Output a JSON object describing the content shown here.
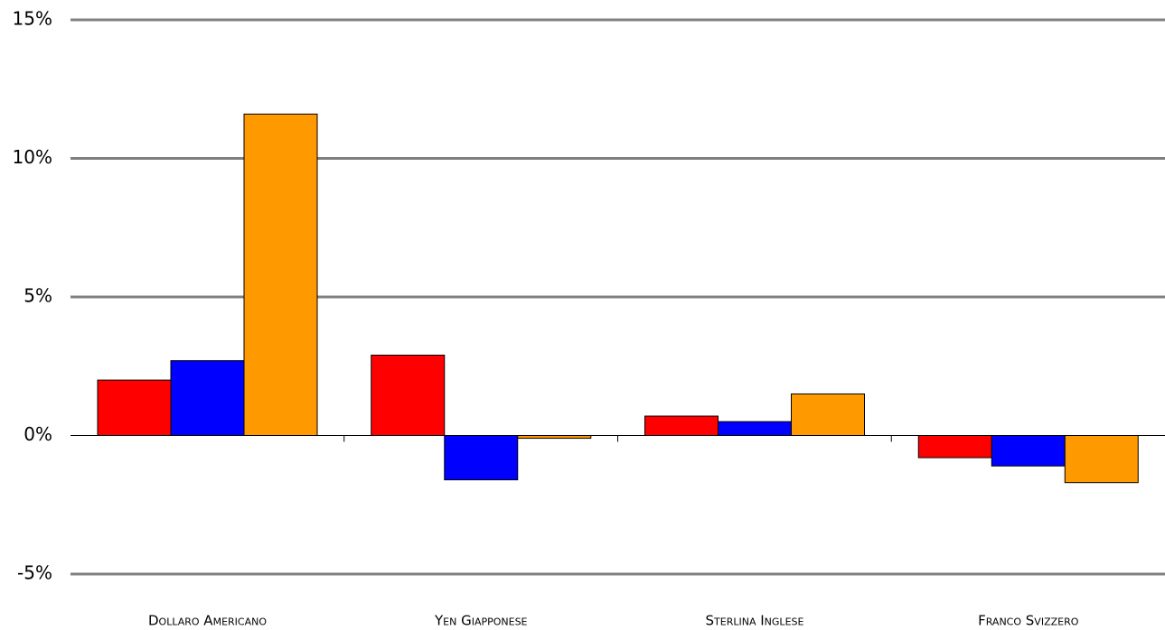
{
  "chart_data": {
    "type": "bar",
    "categories": [
      "Dollaro Americano",
      "Yen Giapponese",
      "Sterlina Inglese",
      "Franco Svizzero"
    ],
    "series": [
      {
        "color": "#ff0000",
        "values": [
          2.0,
          2.9,
          0.7,
          -0.8
        ]
      },
      {
        "color": "#0000ff",
        "values": [
          2.7,
          -1.6,
          0.5,
          -1.1
        ]
      },
      {
        "color": "#ff9900",
        "values": [
          11.6,
          -0.1,
          1.5,
          -1.7
        ]
      }
    ],
    "ylim": [
      -5,
      15
    ],
    "yticks": [
      {
        "value": -5,
        "label": "-5%"
      },
      {
        "value": 0,
        "label": "0%"
      },
      {
        "value": 5,
        "label": "5%"
      },
      {
        "value": 10,
        "label": "10%"
      },
      {
        "value": 15,
        "label": "15%"
      }
    ],
    "grid": true
  }
}
